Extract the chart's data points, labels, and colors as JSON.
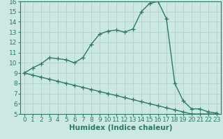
{
  "line1_x": [
    0,
    1,
    2,
    3,
    4,
    5,
    6,
    7,
    8,
    9,
    10,
    11,
    12,
    13,
    14,
    15,
    16,
    17,
    18,
    19,
    20,
    21,
    22,
    23
  ],
  "line1_y": [
    9.0,
    9.5,
    9.9,
    10.5,
    10.4,
    10.3,
    10.0,
    10.5,
    11.8,
    12.8,
    13.1,
    13.2,
    13.0,
    13.3,
    15.0,
    15.8,
    16.0,
    14.3,
    8.0,
    6.3,
    5.5,
    5.5,
    5.2,
    5.1
  ],
  "line2_x": [
    0,
    1,
    2,
    3,
    4,
    5,
    6,
    7,
    8,
    9,
    10,
    11,
    12,
    13,
    14,
    15,
    16,
    17,
    18,
    19,
    20,
    21,
    22,
    23
  ],
  "line2_y": [
    9.0,
    8.8,
    8.6,
    8.4,
    8.2,
    8.0,
    7.8,
    7.6,
    7.4,
    7.2,
    7.0,
    6.8,
    6.6,
    6.4,
    6.2,
    6.0,
    5.8,
    5.6,
    5.4,
    5.2,
    5.0,
    5.0,
    5.0,
    5.0
  ],
  "line_color": "#2a7a6a",
  "bg_color": "#cce8e2",
  "grid_color": "#aacfca",
  "xlabel": "Humidex (Indice chaleur)",
  "ylim": [
    5,
    16
  ],
  "xlim": [
    -0.5,
    23.5
  ],
  "yticks": [
    5,
    6,
    7,
    8,
    9,
    10,
    11,
    12,
    13,
    14,
    15,
    16
  ],
  "xticks": [
    0,
    1,
    2,
    3,
    4,
    5,
    6,
    7,
    8,
    9,
    10,
    11,
    12,
    13,
    14,
    15,
    16,
    17,
    18,
    19,
    20,
    21,
    22,
    23
  ],
  "marker": "+",
  "markersize": 4,
  "linewidth": 1.0,
  "font_size": 6.5,
  "xlabel_fontsize": 7.5
}
